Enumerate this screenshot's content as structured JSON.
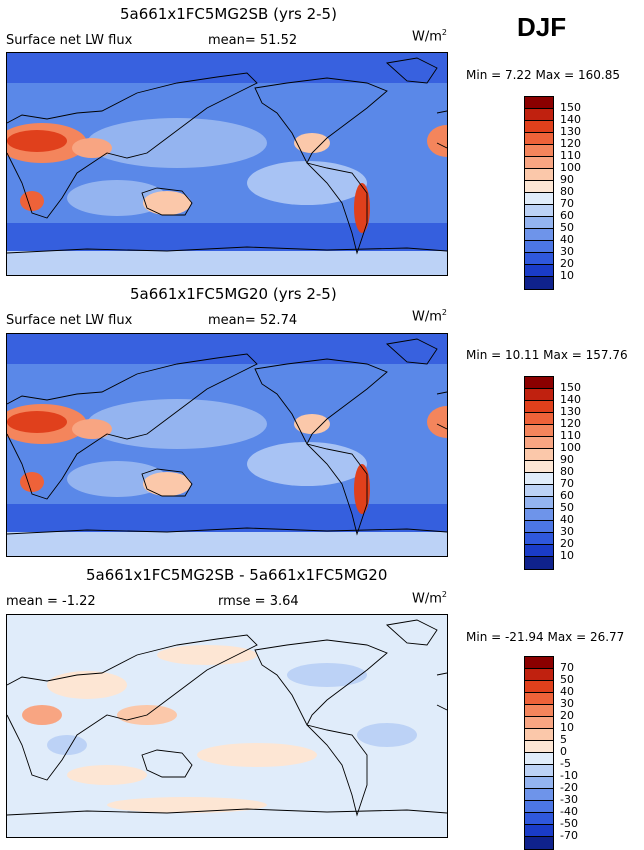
{
  "season": "DJF",
  "panels": [
    {
      "title": "5a661x1FC5MG2SB (yrs 2-5)",
      "subtitle_left": "Surface net LW flux",
      "stat1": "mean=  51.52",
      "stat2": "",
      "units": "W/m",
      "units_exp": "2",
      "minmax": "Min =    7.22  Max = 160.85",
      "colorbar": {
        "labels": [
          "150",
          "140",
          "130",
          "120",
          "110",
          "100",
          "90",
          "80",
          "70",
          "60",
          "50",
          "40",
          "30",
          "20",
          "10"
        ],
        "colors": [
          "#8b0000",
          "#c0210f",
          "#e0401c",
          "#ee6239",
          "#f4855c",
          "#f8a582",
          "#fbc8aa",
          "#fde6d4",
          "#e0ecfa",
          "#bcd2f6",
          "#94b4f0",
          "#6e94ea",
          "#4c76e4",
          "#2f58dc",
          "#1a3cc8",
          "#0f228c"
        ]
      }
    },
    {
      "title": "5a661x1FC5MG20 (yrs 2-5)",
      "subtitle_left": "Surface net LW flux",
      "stat1": "mean=  52.74",
      "stat2": "",
      "units": "W/m",
      "units_exp": "2",
      "minmax": "Min =  10.11  Max = 157.76",
      "colorbar": {
        "labels": [
          "150",
          "140",
          "130",
          "120",
          "110",
          "100",
          "90",
          "80",
          "70",
          "60",
          "50",
          "40",
          "30",
          "20",
          "10"
        ],
        "colors": [
          "#8b0000",
          "#c0210f",
          "#e0401c",
          "#ee6239",
          "#f4855c",
          "#f8a582",
          "#fbc8aa",
          "#fde6d4",
          "#e0ecfa",
          "#bcd2f6",
          "#94b4f0",
          "#6e94ea",
          "#4c76e4",
          "#2f58dc",
          "#1a3cc8",
          "#0f228c"
        ]
      }
    },
    {
      "title": "5a661x1FC5MG2SB - 5a661x1FC5MG20",
      "subtitle_left": "mean =  -1.22",
      "stat1": "",
      "stat2": "rmse =    3.64",
      "units": "W/m",
      "units_exp": "2",
      "minmax": "Min = -21.94  Max =  26.77",
      "colorbar": {
        "labels": [
          "70",
          "50",
          "40",
          "30",
          "20",
          "10",
          "5",
          "0",
          "-5",
          "-10",
          "-20",
          "-30",
          "-40",
          "-50",
          "-70"
        ],
        "colors": [
          "#8b0000",
          "#c0210f",
          "#e0401c",
          "#ee6239",
          "#f4855c",
          "#f8a582",
          "#fbc8aa",
          "#fde6d4",
          "#e0ecfa",
          "#bcd2f6",
          "#94b4f0",
          "#6e94ea",
          "#4c76e4",
          "#2f58dc",
          "#1a3cc8",
          "#0f228c"
        ]
      }
    }
  ]
}
